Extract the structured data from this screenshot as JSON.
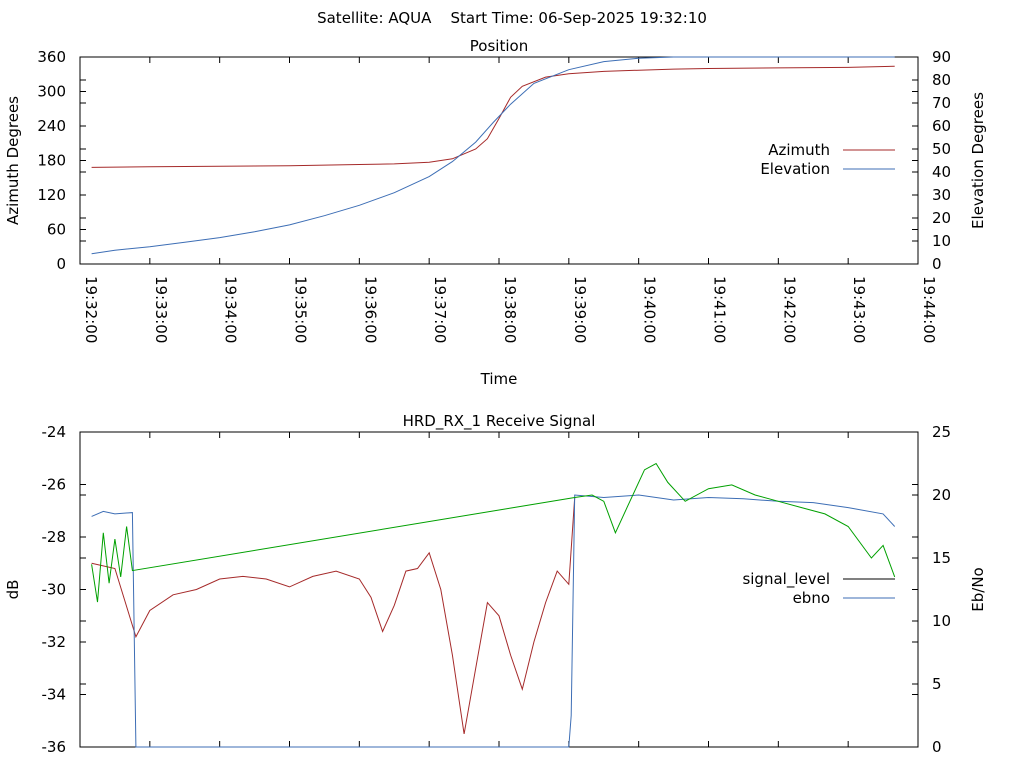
{
  "header": {
    "title": "Satellite: AQUA    Start Time: 06-Sep-2025 19:32:10"
  },
  "chart_data": [
    {
      "type": "line",
      "title": "Position",
      "xlabel": "Time",
      "ylabel": "Azimuth Degrees",
      "y2label": "Elevation Degrees",
      "xlim": [
        "19:32:00",
        "19:44:00"
      ],
      "ylim": [
        0,
        360
      ],
      "y2lim": [
        0,
        90
      ],
      "x_ticks": [
        "19:32:00",
        "19:33:00",
        "19:34:00",
        "19:35:00",
        "19:36:00",
        "19:37:00",
        "19:38:00",
        "19:39:00",
        "19:40:00",
        "19:41:00",
        "19:42:00",
        "19:43:00",
        "19:44:00"
      ],
      "y_ticks": [
        "0",
        "60",
        "120",
        "180",
        "240",
        "300",
        "360"
      ],
      "y2_ticks": [
        "0",
        "10",
        "20",
        "30",
        "40",
        "50",
        "60",
        "70",
        "80",
        "90"
      ],
      "grid": false,
      "legend": "right",
      "series": [
        {
          "name": "Azimuth",
          "axis": "left",
          "color": "#a52a2a",
          "x": [
            "19:32:10",
            "19:33:00",
            "19:34:00",
            "19:35:00",
            "19:36:00",
            "19:36:30",
            "19:37:00",
            "19:37:20",
            "19:37:40",
            "19:37:50",
            "19:38:00",
            "19:38:10",
            "19:38:20",
            "19:38:40",
            "19:39:00",
            "19:39:30",
            "19:40:00",
            "19:40:30",
            "19:41:00",
            "19:42:00",
            "19:43:00",
            "19:43:40"
          ],
          "values": [
            168,
            169,
            170,
            171,
            173,
            174,
            177,
            183,
            200,
            218,
            253,
            290,
            309,
            325,
            331,
            335,
            337,
            339,
            340,
            341,
            342,
            344
          ]
        },
        {
          "name": "Elevation",
          "axis": "right",
          "color": "#3d6eb5",
          "x": [
            "19:32:10",
            "19:32:30",
            "19:33:00",
            "19:33:30",
            "19:34:00",
            "19:34:30",
            "19:35:00",
            "19:35:30",
            "19:36:00",
            "19:36:30",
            "19:37:00",
            "19:37:20",
            "19:37:40",
            "19:37:55",
            "19:38:10",
            "19:38:30",
            "19:39:00",
            "19:39:30",
            "19:40:00",
            "19:40:30",
            "19:41:00",
            "19:41:30",
            "19:42:00",
            "19:42:30",
            "19:43:00",
            "19:43:40"
          ],
          "values": [
            4.5,
            6,
            7.5,
            9.5,
            11.5,
            14,
            17,
            21,
            25.5,
            31,
            38,
            44.5,
            53,
            61.5,
            69.5,
            78.5,
            84.5,
            88,
            89.5,
            90,
            90,
            90,
            90,
            90,
            90,
            90
          ]
        }
      ]
    },
    {
      "type": "line",
      "title": "HRD_RX_1 Receive Signal",
      "xlabel": "",
      "ylabel": "dB",
      "y2label": "Eb/No",
      "ylim": [
        -36,
        -24
      ],
      "y2lim": [
        0,
        25
      ],
      "y_ticks": [
        "-36",
        "-34",
        "-32",
        "-30",
        "-28",
        "-26",
        "-24"
      ],
      "y2_ticks": [
        "0",
        "5",
        "10",
        "15",
        "20",
        "25"
      ],
      "grid": false,
      "legend": "right",
      "series": [
        {
          "name": "signal_level",
          "axis": "left",
          "color": "#a52a2a",
          "x": [
            "19:32:10",
            "19:32:30",
            "19:32:48",
            "19:33:00",
            "19:33:20",
            "19:33:40",
            "19:34:00",
            "19:34:20",
            "19:34:40",
            "19:35:00",
            "19:35:20",
            "19:35:40",
            "19:36:00",
            "19:36:10",
            "19:36:20",
            "19:36:30",
            "19:36:40",
            "19:36:50",
            "19:37:00",
            "19:37:10",
            "19:37:20",
            "19:37:30",
            "19:37:40",
            "19:37:50",
            "19:38:00",
            "19:38:10",
            "19:38:20",
            "19:38:30",
            "19:38:40",
            "19:38:50",
            "19:39:00",
            "19:39:05"
          ],
          "values": [
            -29.0,
            -29.2,
            -31.8,
            -30.8,
            -30.2,
            -30.0,
            -29.6,
            -29.5,
            -29.6,
            -29.9,
            -29.5,
            -29.3,
            -29.6,
            -30.3,
            -31.6,
            -30.6,
            -29.3,
            -29.2,
            -28.6,
            -30.0,
            -32.5,
            -35.5,
            -33.0,
            -30.5,
            -31.0,
            -32.5,
            -33.8,
            -32.0,
            -30.5,
            -29.3,
            -29.8,
            -26.5
          ]
        },
        {
          "name": "ebno",
          "axis": "right",
          "color": "#3d6eb5",
          "x": [
            "19:32:10",
            "19:32:20",
            "19:32:30",
            "19:32:45",
            "19:32:48",
            "19:32:50",
            "19:39:00",
            "19:39:02",
            "19:39:05",
            "19:39:30",
            "19:40:00",
            "19:40:30",
            "19:41:00",
            "19:41:30",
            "19:42:00",
            "19:42:30",
            "19:43:00",
            "19:43:30",
            "19:43:40"
          ],
          "values": [
            18.3,
            18.7,
            18.5,
            18.6,
            0,
            0,
            0,
            2.5,
            20.0,
            19.8,
            20.0,
            19.6,
            19.8,
            19.7,
            19.5,
            19.4,
            19.0,
            18.5,
            17.5
          ]
        },
        {
          "name": "",
          "axis": "right",
          "color": "#00a000",
          "x": [
            "19:32:10",
            "19:32:15",
            "19:32:20",
            "19:32:25",
            "19:32:30",
            "19:32:35",
            "19:32:40",
            "19:32:45",
            "19:39:05",
            "19:39:20",
            "19:39:30",
            "19:39:40",
            "19:39:50",
            "19:40:05",
            "19:40:15",
            "19:40:25",
            "19:40:40",
            "19:41:00",
            "19:41:20",
            "19:41:40",
            "19:42:00",
            "19:42:20",
            "19:42:40",
            "19:43:00",
            "19:43:20",
            "19:43:30",
            "19:43:40"
          ],
          "values": [
            14.5,
            11.5,
            17.0,
            13.0,
            16.5,
            13.5,
            17.5,
            14.0,
            19.8,
            20.0,
            19.5,
            17.0,
            19.0,
            22.0,
            22.5,
            21.0,
            19.5,
            20.5,
            20.8,
            20.0,
            19.5,
            19.0,
            18.5,
            17.5,
            15.0,
            16.0,
            13.5
          ]
        }
      ]
    }
  ]
}
